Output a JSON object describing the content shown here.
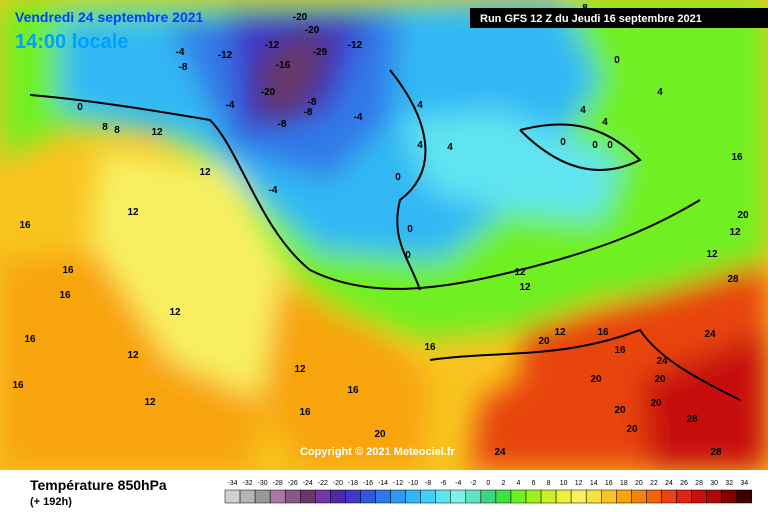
{
  "header": {
    "date": "Vendredi 24 septembre 2021",
    "time": "14:00 locale",
    "run": "Run GFS 12 Z du Jeudi 16 septembre 2021"
  },
  "copyright": "Copyright © 2021 Meteociel.fr",
  "footer": {
    "title": "Température 850hPa",
    "lead": "(+ 192h)"
  },
  "legend": {
    "values": [
      -34,
      -32,
      -30,
      -28,
      -26,
      -24,
      -22,
      -20,
      -18,
      -16,
      -14,
      -12,
      -10,
      -8,
      -6,
      -4,
      -2,
      0,
      2,
      4,
      6,
      8,
      10,
      12,
      14,
      16,
      18,
      20,
      22,
      24,
      26,
      28,
      30,
      32,
      34
    ],
    "colors": [
      "#d0d0d0",
      "#b4b4b4",
      "#989898",
      "#a878a8",
      "#885888",
      "#683868",
      "#7038a8",
      "#5028a8",
      "#4038c8",
      "#3058d8",
      "#3078e8",
      "#3098f0",
      "#30b8f4",
      "#40d0f4",
      "#60e4f0",
      "#80f0e4",
      "#60e4c0",
      "#40d480",
      "#40e040",
      "#70f020",
      "#a0f020",
      "#c8f028",
      "#e8f040",
      "#f8f060",
      "#f8e040",
      "#f8c420",
      "#f8a410",
      "#f08410",
      "#f06410",
      "#e84410",
      "#e02410",
      "#c81010",
      "#b00808",
      "#800000",
      "#400000"
    ]
  },
  "map_labels": [
    -4,
    -8,
    -12,
    -12,
    -20,
    -20,
    -16,
    -20,
    -29,
    -12,
    -8,
    -8,
    -8,
    -4,
    -4,
    -4,
    0,
    8,
    8,
    12,
    12,
    12,
    16,
    16,
    16,
    12,
    16,
    16,
    12,
    12,
    4,
    4,
    4,
    4,
    0,
    0,
    0,
    4,
    16,
    12,
    20,
    28,
    24,
    24,
    20,
    20,
    20,
    20,
    28,
    28,
    20,
    24,
    20,
    16,
    16,
    12,
    16,
    12,
    12,
    12,
    16,
    16,
    20,
    0,
    0,
    0,
    4,
    8,
    0,
    12
  ]
}
